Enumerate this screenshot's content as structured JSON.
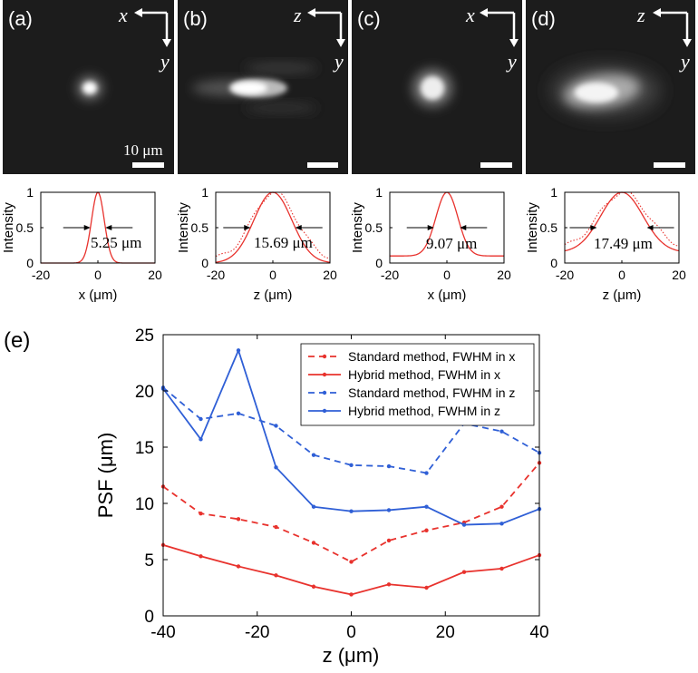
{
  "colors": {
    "red": "#e8322d",
    "blue": "#2f5fd6"
  },
  "images": [
    {
      "label": "(a)",
      "h_axis": "x",
      "v_axis": "y",
      "scale_text": "10 μm",
      "blob": {
        "rx": 12,
        "ry": 11,
        "elong": 0
      }
    },
    {
      "label": "(b)",
      "h_axis": "z",
      "v_axis": "y",
      "scale_text": "",
      "blob": {
        "rx": 36,
        "ry": 10,
        "elong": 1
      }
    },
    {
      "label": "(c)",
      "h_axis": "x",
      "v_axis": "y",
      "scale_text": "",
      "blob": {
        "rx": 20,
        "ry": 20,
        "elong": 0
      }
    },
    {
      "label": "(d)",
      "h_axis": "z",
      "v_axis": "y",
      "scale_text": "",
      "blob": {
        "rx": 42,
        "ry": 22,
        "elong": 1
      }
    }
  ],
  "chart_data": [
    {
      "type": "line",
      "panel": "a-profile",
      "xlabel": "x (μm)",
      "ylabel": "Intensity",
      "xlim": [
        -20,
        20
      ],
      "ylim": [
        0,
        1
      ],
      "xticks": [
        "-20",
        "0",
        "20"
      ],
      "yticks": [
        "0",
        "0.5",
        "1"
      ],
      "fwhm_label": "5.25 μm",
      "fwhm": 5.25,
      "base": 0.0,
      "dotted": false
    },
    {
      "type": "line",
      "panel": "b-profile",
      "xlabel": "z (μm)",
      "ylabel": "Intensity",
      "xlim": [
        -20,
        20
      ],
      "ylim": [
        0,
        1
      ],
      "xticks": [
        "-20",
        "0",
        "20"
      ],
      "yticks": [
        "0",
        "0.5",
        "1"
      ],
      "fwhm_label": "15.69 μm",
      "fwhm": 15.69,
      "base": 0.0,
      "dotted": true
    },
    {
      "type": "line",
      "panel": "c-profile",
      "xlabel": "x (μm)",
      "ylabel": "Intensity",
      "xlim": [
        -20,
        20
      ],
      "ylim": [
        0,
        1
      ],
      "xticks": [
        "-20",
        "0",
        "20"
      ],
      "yticks": [
        "0",
        "0.5",
        "1"
      ],
      "fwhm_label": "9.07 μm",
      "fwhm": 9.07,
      "base": 0.1,
      "dotted": false
    },
    {
      "type": "line",
      "panel": "d-profile",
      "xlabel": "z (μm)",
      "ylabel": "Intensity",
      "xlim": [
        -20,
        20
      ],
      "ylim": [
        0,
        1
      ],
      "xticks": [
        "-20",
        "0",
        "20"
      ],
      "yticks": [
        "0",
        "0.5",
        "1"
      ],
      "fwhm_label": "17.49 μm",
      "fwhm": 17.49,
      "base": 0.15,
      "dotted": true
    },
    {
      "type": "line",
      "panel": "(e)",
      "xlabel": "z (μm)",
      "ylabel": "PSF (μm)",
      "xlim": [
        -40,
        40
      ],
      "ylim": [
        0,
        25
      ],
      "xticks": [
        "-40",
        "-20",
        "0",
        "20",
        "40"
      ],
      "yticks": [
        "0",
        "5",
        "10",
        "15",
        "20",
        "25"
      ],
      "x": [
        -40,
        -32,
        -24,
        -16,
        -8,
        0,
        8,
        16,
        24,
        32,
        40
      ],
      "series": [
        {
          "name": "Standard method, FWHM in x",
          "style": "dashed",
          "color": "red",
          "values": [
            11.5,
            9.1,
            8.6,
            7.9,
            6.5,
            4.8,
            6.7,
            7.6,
            8.3,
            9.7,
            13.6
          ]
        },
        {
          "name": "Hybrid method, FWHM in x",
          "style": "solid",
          "color": "red",
          "values": [
            6.3,
            5.3,
            4.4,
            3.6,
            2.6,
            1.9,
            2.8,
            2.5,
            3.9,
            4.2,
            5.4
          ]
        },
        {
          "name": "Standard method, FWHM in z",
          "style": "dashed",
          "color": "blue",
          "values": [
            20.3,
            17.5,
            18.0,
            16.9,
            14.3,
            13.4,
            13.3,
            12.7,
            17.1,
            16.4,
            14.5
          ]
        },
        {
          "name": "Hybrid method, FWHM in z",
          "style": "solid",
          "color": "blue",
          "values": [
            20.2,
            15.7,
            23.6,
            13.2,
            9.7,
            9.3,
            9.4,
            9.7,
            8.1,
            8.2,
            9.5
          ]
        }
      ],
      "legend_position": "top-right"
    }
  ]
}
